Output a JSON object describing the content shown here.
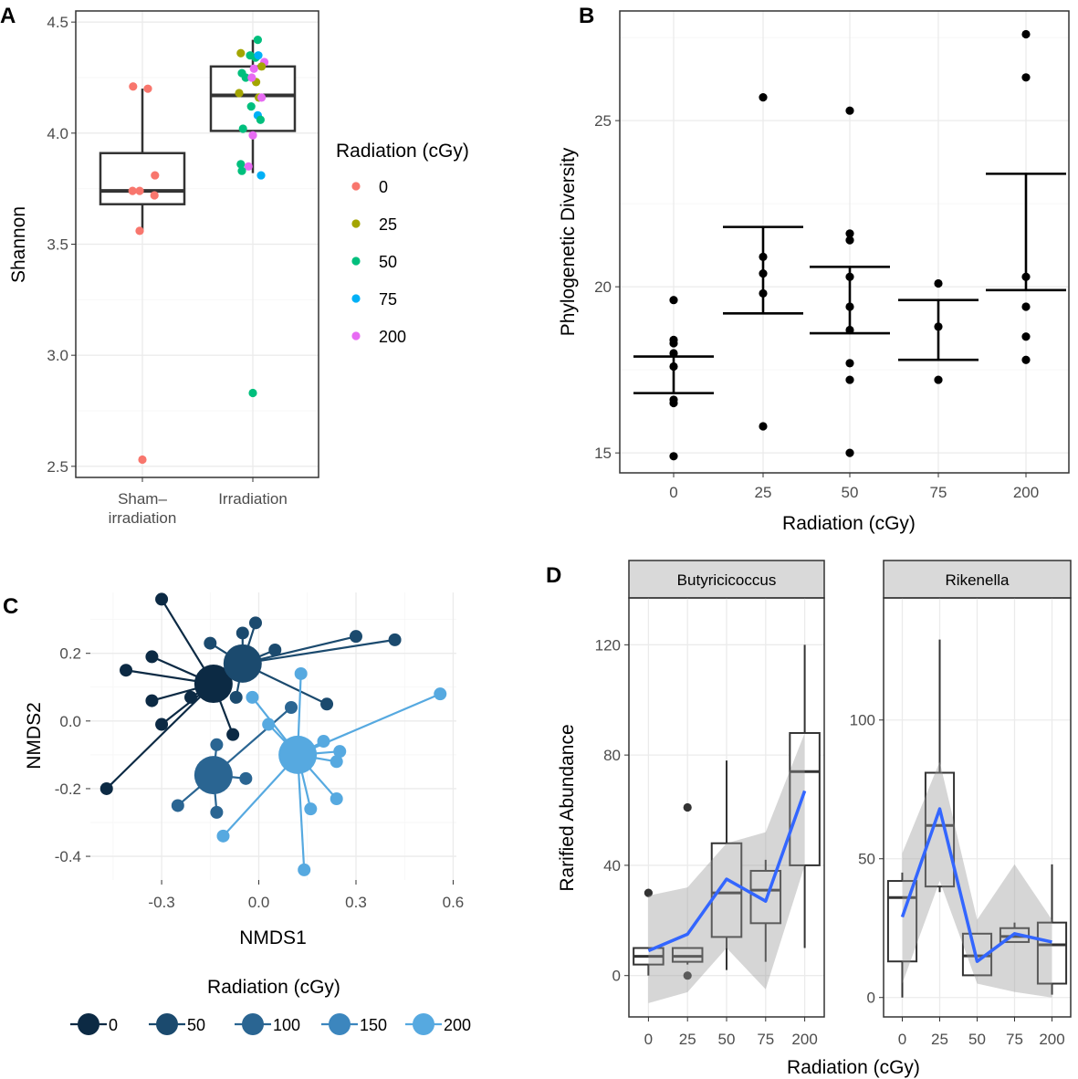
{
  "panels": {
    "a_letter": "A",
    "b_letter": "B",
    "c_letter": "C",
    "d_letter": "D"
  },
  "chart_data": [
    {
      "id": "A",
      "type": "box",
      "title": "",
      "xlabel": "",
      "ylabel": "Shannon",
      "ylim": [
        2.45,
        4.55
      ],
      "yticks": [
        "2.5",
        "3.0",
        "3.5",
        "4.0",
        "4.5"
      ],
      "categories": [
        "Sham–\nirradiation",
        "Irradiation"
      ],
      "boxes": [
        {
          "category": "Sham–\nirradiation",
          "q1": 3.68,
          "median": 3.74,
          "q3": 3.91,
          "whisker_low": 3.56,
          "whisker_high": 4.2
        },
        {
          "category": "Irradiation",
          "q1": 4.01,
          "median": 4.17,
          "q3": 4.3,
          "whisker_low": 3.82,
          "whisker_high": 4.42
        }
      ],
      "legend_title": "Radiation (cGy)",
      "legend": [
        {
          "label": "0",
          "color": "#F8766D"
        },
        {
          "label": "25",
          "color": "#A3A500"
        },
        {
          "label": "50",
          "color": "#00BF7D"
        },
        {
          "label": "75",
          "color": "#00B0F6"
        },
        {
          "label": "200",
          "color": "#E76BF3"
        }
      ],
      "points": [
        {
          "cat": 0,
          "dx": -0.17,
          "y": 4.21,
          "group": "0"
        },
        {
          "cat": 0,
          "dx": 0.1,
          "y": 4.2,
          "group": "0"
        },
        {
          "cat": 0,
          "dx": 0.23,
          "y": 3.81,
          "group": "0"
        },
        {
          "cat": 0,
          "dx": -0.18,
          "y": 3.74,
          "group": "0"
        },
        {
          "cat": 0,
          "dx": -0.05,
          "y": 3.74,
          "group": "0"
        },
        {
          "cat": 0,
          "dx": 0.22,
          "y": 3.72,
          "group": "0"
        },
        {
          "cat": 0,
          "dx": -0.05,
          "y": 3.56,
          "group": "0"
        },
        {
          "cat": 0,
          "dx": 0.0,
          "y": 2.53,
          "group": "0"
        },
        {
          "cat": 1,
          "dx": -0.22,
          "y": 4.36,
          "group": "25"
        },
        {
          "cat": 1,
          "dx": 0.09,
          "y": 4.42,
          "group": "50"
        },
        {
          "cat": 1,
          "dx": -0.05,
          "y": 4.35,
          "group": "50"
        },
        {
          "cat": 1,
          "dx": 0.05,
          "y": 4.34,
          "group": "50"
        },
        {
          "cat": 1,
          "dx": 0.1,
          "y": 4.35,
          "group": "75"
        },
        {
          "cat": 1,
          "dx": 0.21,
          "y": 4.32,
          "group": "200"
        },
        {
          "cat": 1,
          "dx": 0.16,
          "y": 4.3,
          "group": "25"
        },
        {
          "cat": 1,
          "dx": 0.02,
          "y": 4.29,
          "group": "200"
        },
        {
          "cat": 1,
          "dx": -0.2,
          "y": 4.27,
          "group": "50"
        },
        {
          "cat": 1,
          "dx": -0.13,
          "y": 4.25,
          "group": "50"
        },
        {
          "cat": 1,
          "dx": 0.06,
          "y": 4.23,
          "group": "25"
        },
        {
          "cat": 1,
          "dx": -0.02,
          "y": 4.25,
          "group": "200"
        },
        {
          "cat": 1,
          "dx": -0.25,
          "y": 4.18,
          "group": "25"
        },
        {
          "cat": 1,
          "dx": 0.11,
          "y": 4.16,
          "group": "25"
        },
        {
          "cat": 1,
          "dx": 0.16,
          "y": 4.16,
          "group": "200"
        },
        {
          "cat": 1,
          "dx": -0.03,
          "y": 4.12,
          "group": "50"
        },
        {
          "cat": 1,
          "dx": 0.09,
          "y": 4.08,
          "group": "75"
        },
        {
          "cat": 1,
          "dx": 0.14,
          "y": 4.06,
          "group": "50"
        },
        {
          "cat": 1,
          "dx": -0.18,
          "y": 4.02,
          "group": "50"
        },
        {
          "cat": 1,
          "dx": 0.0,
          "y": 3.99,
          "group": "200"
        },
        {
          "cat": 1,
          "dx": -0.22,
          "y": 3.86,
          "group": "50"
        },
        {
          "cat": 1,
          "dx": -0.08,
          "y": 3.85,
          "group": "200"
        },
        {
          "cat": 1,
          "dx": -0.2,
          "y": 3.83,
          "group": "50"
        },
        {
          "cat": 1,
          "dx": 0.15,
          "y": 3.81,
          "group": "75"
        },
        {
          "cat": 1,
          "dx": 0.0,
          "y": 2.83,
          "group": "50"
        }
      ]
    },
    {
      "id": "B",
      "type": "errorbar-scatter",
      "xlabel": "Radiation (cGy)",
      "ylabel": "Phylogenetic Diversity",
      "ylim": [
        14.4,
        28.3
      ],
      "yticks": [
        "15",
        "20",
        "25"
      ],
      "categories": [
        "0",
        "25",
        "50",
        "75",
        "200"
      ],
      "error_bars": [
        {
          "category": "0",
          "low": 16.8,
          "high": 17.9
        },
        {
          "category": "25",
          "low": 19.2,
          "high": 21.8
        },
        {
          "category": "50",
          "low": 18.6,
          "high": 20.6
        },
        {
          "category": "75",
          "low": 17.8,
          "high": 19.6
        },
        {
          "category": "200",
          "low": 19.9,
          "high": 23.4
        }
      ],
      "points": [
        {
          "category": "0",
          "y": 19.6
        },
        {
          "category": "0",
          "y": 18.4
        },
        {
          "category": "0",
          "y": 18.3
        },
        {
          "category": "0",
          "y": 18.0
        },
        {
          "category": "0",
          "y": 17.6
        },
        {
          "category": "0",
          "y": 16.6
        },
        {
          "category": "0",
          "y": 16.5
        },
        {
          "category": "0",
          "y": 14.9
        },
        {
          "category": "25",
          "y": 25.7
        },
        {
          "category": "25",
          "y": 20.9
        },
        {
          "category": "25",
          "y": 20.4
        },
        {
          "category": "25",
          "y": 19.8
        },
        {
          "category": "25",
          "y": 15.8
        },
        {
          "category": "50",
          "y": 25.3
        },
        {
          "category": "50",
          "y": 21.6
        },
        {
          "category": "50",
          "y": 21.4
        },
        {
          "category": "50",
          "y": 20.3
        },
        {
          "category": "50",
          "y": 19.4
        },
        {
          "category": "50",
          "y": 18.7
        },
        {
          "category": "50",
          "y": 17.7
        },
        {
          "category": "50",
          "y": 17.2
        },
        {
          "category": "50",
          "y": 15.0
        },
        {
          "category": "75",
          "y": 20.1
        },
        {
          "category": "75",
          "y": 18.8
        },
        {
          "category": "75",
          "y": 17.2
        },
        {
          "category": "200",
          "y": 27.6
        },
        {
          "category": "200",
          "y": 26.3
        },
        {
          "category": "200",
          "y": 20.3
        },
        {
          "category": "200",
          "y": 19.4
        },
        {
          "category": "200",
          "y": 18.5
        },
        {
          "category": "200",
          "y": 17.8
        }
      ]
    },
    {
      "id": "C",
      "type": "scatter",
      "subtype": "ordination-spider",
      "xlabel": "NMDS1",
      "ylabel": "NMDS2",
      "xlim": [
        -0.52,
        0.61
      ],
      "ylim": [
        -0.47,
        0.38
      ],
      "xticks": [
        "-0.3",
        "0.0",
        "0.3",
        "0.6"
      ],
      "yticks": [
        "-0.4",
        "-0.2",
        "0.0",
        "0.2"
      ],
      "legend_title": "Radiation (cGy)",
      "legend": [
        {
          "label": "0",
          "color": "#0C2A44"
        },
        {
          "label": "50",
          "color": "#1B4A6E"
        },
        {
          "label": "100",
          "color": "#2A6592"
        },
        {
          "label": "150",
          "color": "#3C86BE"
        },
        {
          "label": "200",
          "color": "#56A9E0"
        }
      ],
      "centroids": [
        {
          "x": -0.14,
          "y": 0.11,
          "color": "#0C2A44"
        },
        {
          "x": -0.05,
          "y": 0.17,
          "color": "#1B4A6E"
        },
        {
          "x": -0.14,
          "y": -0.16,
          "color": "#2A6592"
        },
        {
          "x": 0.12,
          "y": -0.1,
          "color": "#56A9E0"
        }
      ],
      "points": [
        {
          "x": -0.3,
          "y": 0.36,
          "c": 0
        },
        {
          "x": -0.33,
          "y": 0.19,
          "c": 0
        },
        {
          "x": -0.41,
          "y": 0.15,
          "c": 0
        },
        {
          "x": -0.33,
          "y": 0.06,
          "c": 0
        },
        {
          "x": -0.3,
          "y": -0.01,
          "c": 0
        },
        {
          "x": -0.47,
          "y": -0.2,
          "c": 0
        },
        {
          "x": -0.21,
          "y": 0.07,
          "c": 0
        },
        {
          "x": -0.08,
          "y": -0.04,
          "c": 0
        },
        {
          "x": -0.05,
          "y": 0.26,
          "c": 1
        },
        {
          "x": -0.01,
          "y": 0.29,
          "c": 1
        },
        {
          "x": -0.15,
          "y": 0.23,
          "c": 1
        },
        {
          "x": 0.05,
          "y": 0.21,
          "c": 1
        },
        {
          "x": 0.3,
          "y": 0.25,
          "c": 1
        },
        {
          "x": 0.42,
          "y": 0.24,
          "c": 1
        },
        {
          "x": 0.21,
          "y": 0.05,
          "c": 1
        },
        {
          "x": -0.07,
          "y": 0.07,
          "c": 1
        },
        {
          "x": -0.25,
          "y": -0.25,
          "c": 2
        },
        {
          "x": -0.04,
          "y": -0.17,
          "c": 2
        },
        {
          "x": -0.13,
          "y": -0.07,
          "c": 2
        },
        {
          "x": -0.13,
          "y": -0.27,
          "c": 2
        },
        {
          "x": 0.1,
          "y": 0.04,
          "c": 2
        },
        {
          "x": 0.56,
          "y": 0.08,
          "c": 3
        },
        {
          "x": 0.16,
          "y": -0.26,
          "c": 3
        },
        {
          "x": 0.14,
          "y": -0.44,
          "c": 3
        },
        {
          "x": 0.03,
          "y": -0.01,
          "c": 3
        },
        {
          "x": 0.13,
          "y": 0.14,
          "c": 4
        },
        {
          "x": -0.02,
          "y": 0.07,
          "c": 4
        },
        {
          "x": 0.25,
          "y": -0.09,
          "c": 4
        },
        {
          "x": 0.2,
          "y": -0.06,
          "c": 4
        },
        {
          "x": 0.24,
          "y": -0.12,
          "c": 4
        },
        {
          "x": 0.24,
          "y": -0.23,
          "c": 4
        },
        {
          "x": -0.11,
          "y": -0.34,
          "c": 4
        }
      ]
    },
    {
      "id": "D",
      "type": "box",
      "subtype": "faceted-box-with-smooth",
      "xlabel": "Radiation (cGy)",
      "ylabel": "Rarified Abundance",
      "categories": [
        "0",
        "25",
        "50",
        "75",
        "200"
      ],
      "facets": [
        {
          "label": "Butyricicoccus",
          "ylim": [
            -15,
            137
          ],
          "yticks": [
            "0",
            "40",
            "80",
            "120"
          ],
          "boxes": [
            {
              "q1": 4,
              "median": 7,
              "q3": 10,
              "lo": 0,
              "hi": 10
            },
            {
              "q1": 5,
              "median": 7,
              "q3": 10,
              "lo": 4,
              "hi": 10
            },
            {
              "q1": 14,
              "median": 30,
              "q3": 48,
              "lo": 2,
              "hi": 78
            },
            {
              "q1": 19,
              "median": 31,
              "q3": 38,
              "lo": 5,
              "hi": 42
            },
            {
              "q1": 40,
              "median": 74,
              "q3": 88,
              "lo": 10,
              "hi": 120
            }
          ],
          "outliers": [
            {
              "category": "0",
              "y": 30
            },
            {
              "category": "25",
              "y": 61
            },
            {
              "category": "25",
              "y": 0
            }
          ],
          "smooth": [
            9,
            15,
            35,
            27,
            67
          ],
          "band_low": [
            -10,
            -6,
            10,
            -5,
            40
          ],
          "band_high": [
            29,
            32,
            48,
            52,
            88
          ]
        },
        {
          "label": "Rikenella",
          "ylim": [
            -7,
            144
          ],
          "yticks": [
            "0",
            "50",
            "100"
          ],
          "boxes": [
            {
              "q1": 13,
              "median": 36,
              "q3": 42,
              "lo": 0,
              "hi": 45
            },
            {
              "q1": 40,
              "median": 62,
              "q3": 81,
              "lo": 38,
              "hi": 129
            },
            {
              "q1": 8,
              "median": 15,
              "q3": 23,
              "lo": 8,
              "hi": 23
            },
            {
              "q1": 20,
              "median": 22,
              "q3": 25,
              "lo": 20,
              "hi": 27
            },
            {
              "q1": 5,
              "median": 19,
              "q3": 27,
              "lo": 1,
              "hi": 48
            }
          ],
          "outliers": [],
          "smooth": [
            29,
            68,
            13,
            23,
            20
          ],
          "band_low": [
            5,
            42,
            5,
            2,
            0
          ],
          "band_high": [
            52,
            85,
            28,
            48,
            28
          ]
        }
      ]
    }
  ]
}
